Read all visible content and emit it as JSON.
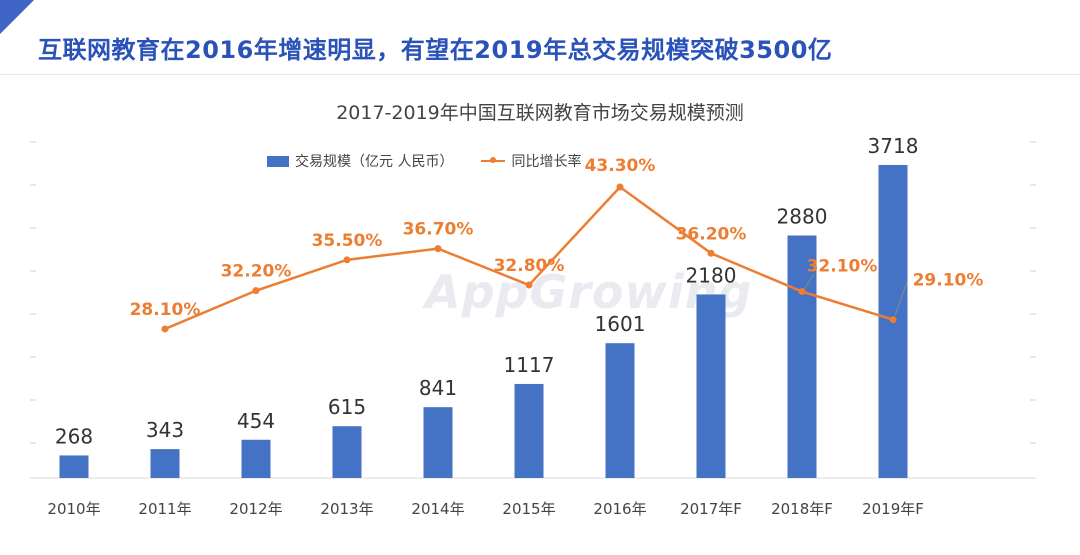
{
  "headline": "互联网教育在2016年增速明显，有望在2019年总交易规模突破3500亿",
  "watermark": "AppGrowing",
  "chart_data": {
    "type": "bar",
    "title": "2017-2019年中国互联网教育市场交易规模预测",
    "categories": [
      "2010年",
      "2011年",
      "2012年",
      "2013年",
      "2014年",
      "2015年",
      "2016年",
      "2017年F",
      "2018年F",
      "2019年F"
    ],
    "series": [
      {
        "name": "交易规模（亿元 人民币）",
        "type": "bar",
        "color": "#4472c4",
        "values": [
          268,
          343,
          454,
          615,
          841,
          1117,
          1601,
          2180,
          2880,
          3718
        ],
        "labels": [
          "268",
          "343",
          "454",
          "615",
          "841",
          "1117",
          "1601",
          "2180",
          "2880",
          "3718"
        ]
      },
      {
        "name": "同比增长率",
        "type": "line",
        "color": "#ed7d31",
        "values": [
          null,
          28.1,
          32.2,
          35.5,
          36.7,
          32.8,
          43.3,
          36.2,
          32.1,
          29.1
        ],
        "labels": [
          "",
          "28.10%",
          "32.20%",
          "35.50%",
          "36.70%",
          "32.80%",
          "43.30%",
          "36.20%",
          "32.10%",
          "29.10%"
        ]
      }
    ],
    "legend": [
      "交易规模（亿元 人民币）",
      "同比增长率"
    ],
    "legend_position": "top",
    "bar_ylim": [
      0,
      4000
    ],
    "line_ylim": [
      0,
      70
    ]
  }
}
